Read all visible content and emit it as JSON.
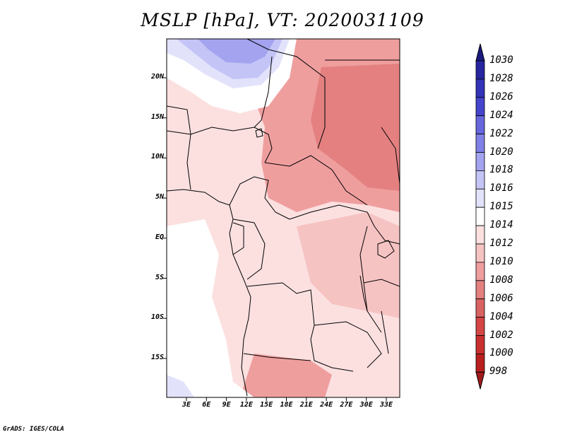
{
  "title": "MSLP [hPa], VT: 2020031109",
  "credit": "GrADS: IGES/COLA",
  "lat_labels": [
    "20N",
    "15N",
    "10N",
    "5N",
    "EQ",
    "5S",
    "10S",
    "15S"
  ],
  "lon_labels": [
    "3E",
    "6E",
    "9E",
    "12E",
    "15E",
    "18E",
    "21E",
    "24E",
    "27E",
    "30E",
    "33E"
  ],
  "colorbar": {
    "levels": [
      "1030",
      "1028",
      "1026",
      "1024",
      "1022",
      "1020",
      "1018",
      "1016",
      "1015",
      "1014",
      "1012",
      "1010",
      "1008",
      "1006",
      "1004",
      "1002",
      "1000",
      "998"
    ],
    "colors": [
      "#1a1a80",
      "#2626a0",
      "#3333b8",
      "#4444cc",
      "#6666dd",
      "#8080e6",
      "#a3a3f0",
      "#c4c4f7",
      "#e2e2fb",
      "#ffffff",
      "#fce0e0",
      "#f6c3c3",
      "#ef9e9e",
      "#e48080",
      "#d96262",
      "#d44545",
      "#c83030",
      "#b82020",
      "#a01a1a"
    ],
    "field_colors": {
      "light_pink": "#fce0e0",
      "pink": "#f6c3c3",
      "salmon": "#ef9e9e",
      "red": "#e48080",
      "white": "#ffffff",
      "pale_blue": "#e2e2fb",
      "light_blue": "#c4c4f7",
      "blue": "#a3a3f0"
    }
  }
}
